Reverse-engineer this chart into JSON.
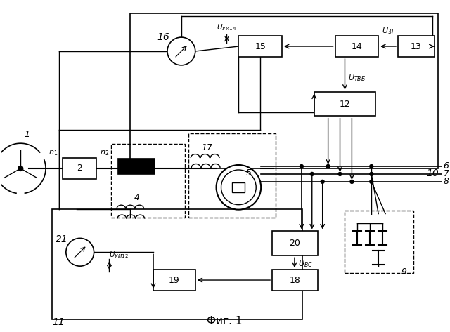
{
  "title": "Фиг. 1",
  "bg_color": "#ffffff",
  "fig_width": 6.4,
  "fig_height": 4.73,
  "dpi": 100
}
